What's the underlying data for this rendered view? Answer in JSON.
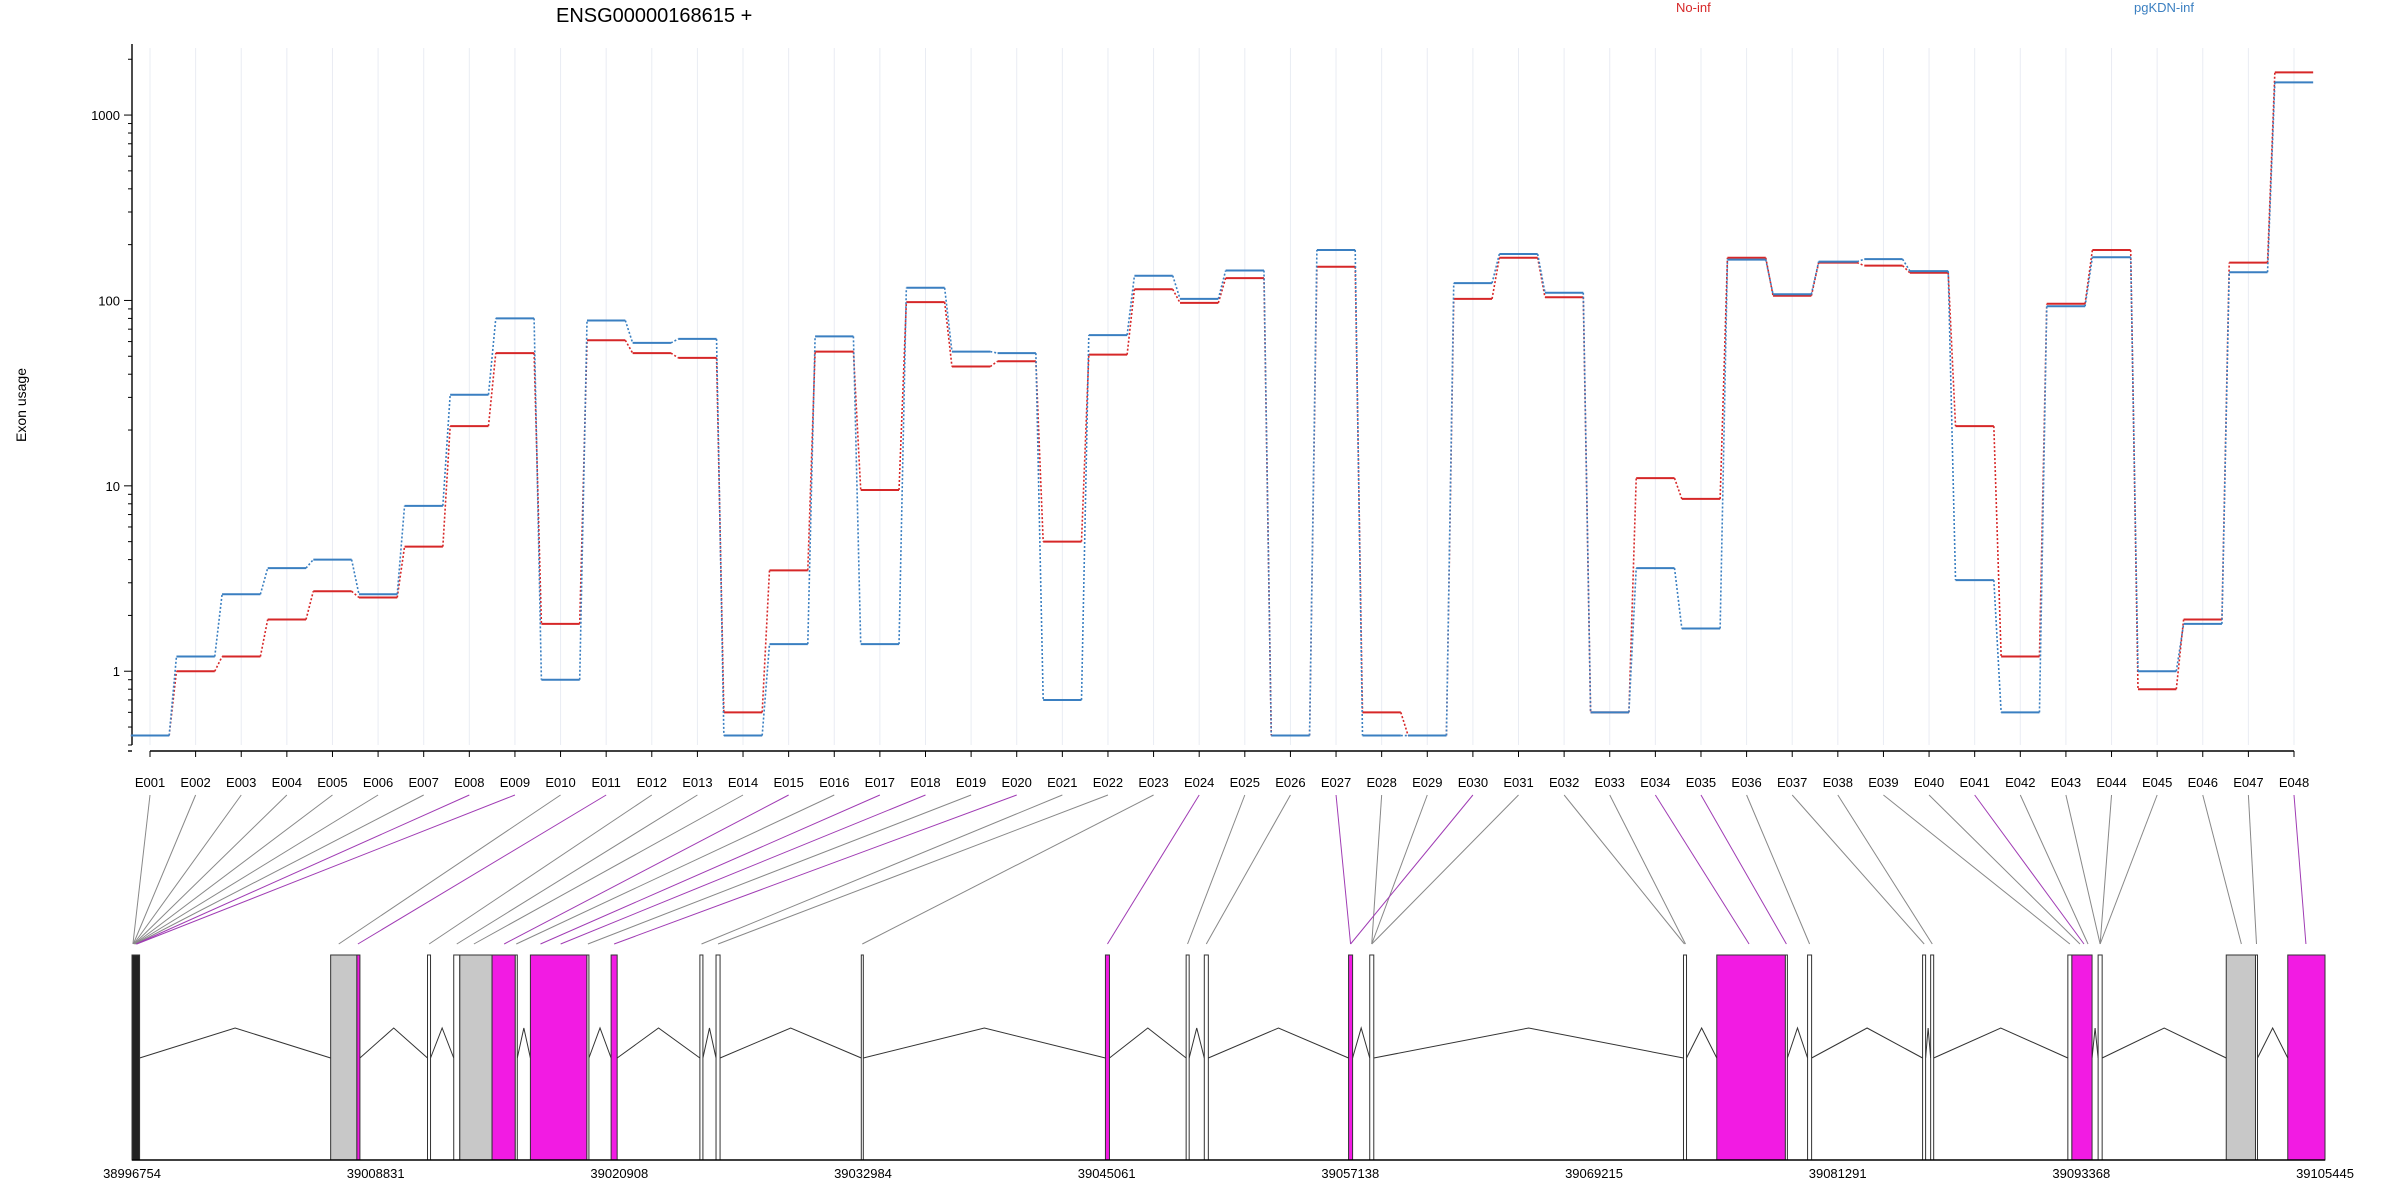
{
  "chart_data": {
    "type": "line",
    "title": "ENSG00000168615 +",
    "ylabel": "Exon usage",
    "y_scale": "log",
    "ylim": [
      0.4,
      2300
    ],
    "yticks": [
      1,
      10,
      100,
      1000
    ],
    "ytick_labels": [
      "1",
      "10",
      "100",
      "1000"
    ],
    "grid": "vertical, per exon",
    "legend": "top, horizontal",
    "categories": [
      "E001",
      "E002",
      "E003",
      "E004",
      "E005",
      "E006",
      "E007",
      "E008",
      "E009",
      "E010",
      "E011",
      "E012",
      "E013",
      "E014",
      "E015",
      "E016",
      "E017",
      "E018",
      "E019",
      "E020",
      "E021",
      "E022",
      "E023",
      "E024",
      "E025",
      "E026",
      "E027",
      "E028",
      "E029",
      "E030",
      "E031",
      "E032",
      "E033",
      "E034",
      "E035",
      "E036",
      "E037",
      "E038",
      "E039",
      "E040",
      "E041",
      "E042",
      "E043",
      "E044",
      "E045",
      "E046",
      "E047",
      "E048"
    ],
    "series": [
      {
        "name": "No-inf",
        "color": "#d62728",
        "values": [
          0.45,
          1.0,
          1.2,
          1.9,
          2.7,
          2.5,
          4.7,
          21,
          52,
          1.8,
          61,
          52,
          49,
          0.6,
          3.5,
          53,
          9.5,
          98,
          44,
          47,
          5,
          51,
          115,
          97,
          132,
          0.45,
          152,
          0.6,
          0.45,
          102,
          170,
          104,
          0.6,
          11,
          8.5,
          170,
          106,
          160,
          154,
          141,
          21,
          1.2,
          96,
          187,
          0.8,
          1.9,
          160,
          1700
        ]
      },
      {
        "name": "pgKDN-inf",
        "color": "#3a7fc1",
        "values": [
          0.45,
          1.2,
          2.6,
          3.6,
          4.0,
          2.6,
          7.8,
          31,
          80,
          0.9,
          78,
          59,
          62,
          0.45,
          1.4,
          64,
          1.4,
          117,
          53,
          52,
          0.7,
          65,
          136,
          102,
          145,
          0.45,
          187,
          0.45,
          0.45,
          124,
          178,
          110,
          0.6,
          3.6,
          1.7,
          166,
          108,
          162,
          167,
          144,
          3.1,
          0.6,
          93,
          171,
          1.0,
          1.8,
          142,
          1500
        ]
      }
    ]
  },
  "gene_model": {
    "coordinates": [
      "38996754",
      "39008831",
      "39020908",
      "39032984",
      "39045061",
      "39057138",
      "39069215",
      "39081291",
      "39093368",
      "39105445"
    ],
    "exon_color_significant": "#f21be3",
    "exon_color_other": "#c8c8c8",
    "exons": [
      {
        "s": 38996754,
        "e": 38997130,
        "f": "black"
      },
      {
        "s": 39006600,
        "e": 39007900,
        "f": "grey"
      },
      {
        "s": 39007900,
        "e": 39008050,
        "f": "pink"
      },
      {
        "s": 39011400,
        "e": 39011550,
        "f": "white"
      },
      {
        "s": 39012700,
        "e": 39013000,
        "f": "white"
      },
      {
        "s": 39013000,
        "e": 39014600,
        "f": "grey"
      },
      {
        "s": 39014600,
        "e": 39015750,
        "f": "pink"
      },
      {
        "s": 39015750,
        "e": 39015850,
        "f": "white"
      },
      {
        "s": 39016500,
        "e": 39019300,
        "f": "pink"
      },
      {
        "s": 39019300,
        "e": 39019400,
        "f": "white"
      },
      {
        "s": 39020500,
        "e": 39020800,
        "f": "pink"
      },
      {
        "s": 39024900,
        "e": 39025050,
        "f": "white"
      },
      {
        "s": 39025700,
        "e": 39025900,
        "f": "white"
      },
      {
        "s": 39032900,
        "e": 39033000,
        "f": "white"
      },
      {
        "s": 39045000,
        "e": 39045200,
        "f": "pink"
      },
      {
        "s": 39049000,
        "e": 39049150,
        "f": "white"
      },
      {
        "s": 39049900,
        "e": 39050100,
        "f": "white"
      },
      {
        "s": 39057050,
        "e": 39057250,
        "f": "pink"
      },
      {
        "s": 39058100,
        "e": 39058300,
        "f": "white"
      },
      {
        "s": 39073650,
        "e": 39073800,
        "f": "white"
      },
      {
        "s": 39075300,
        "e": 39078700,
        "f": "pink"
      },
      {
        "s": 39078700,
        "e": 39078800,
        "f": "white"
      },
      {
        "s": 39079800,
        "e": 39080000,
        "f": "white"
      },
      {
        "s": 39085500,
        "e": 39085650,
        "f": "white"
      },
      {
        "s": 39085900,
        "e": 39086050,
        "f": "white"
      },
      {
        "s": 39092700,
        "e": 39092900,
        "f": "white"
      },
      {
        "s": 39092900,
        "e": 39093900,
        "f": "pink"
      },
      {
        "s": 39094200,
        "e": 39094400,
        "f": "white"
      },
      {
        "s": 39100550,
        "e": 39102000,
        "f": "grey"
      },
      {
        "s": 39102000,
        "e": 39102100,
        "f": "white"
      },
      {
        "s": 39103600,
        "e": 39105445,
        "f": "pink"
      }
    ],
    "links": [
      {
        "c": 38996800,
        "p": false
      },
      {
        "c": 38996820,
        "p": false
      },
      {
        "c": 38996840,
        "p": false
      },
      {
        "c": 38996860,
        "p": false
      },
      {
        "c": 38996880,
        "p": false
      },
      {
        "c": 38996900,
        "p": false
      },
      {
        "c": 38996930,
        "p": false
      },
      {
        "c": 38996960,
        "p": true
      },
      {
        "c": 38996990,
        "p": true
      },
      {
        "c": 39007000,
        "p": false
      },
      {
        "c": 39007950,
        "p": true
      },
      {
        "c": 39011480,
        "p": false
      },
      {
        "c": 39012850,
        "p": false
      },
      {
        "c": 39013700,
        "p": false
      },
      {
        "c": 39015200,
        "p": true
      },
      {
        "c": 39015800,
        "p": false
      },
      {
        "c": 39017000,
        "p": true
      },
      {
        "c": 39018000,
        "p": true
      },
      {
        "c": 39019350,
        "p": false
      },
      {
        "c": 39020650,
        "p": true
      },
      {
        "c": 39024980,
        "p": false
      },
      {
        "c": 39025800,
        "p": false
      },
      {
        "c": 39032950,
        "p": false
      },
      {
        "c": 39045100,
        "p": true
      },
      {
        "c": 39049070,
        "p": false
      },
      {
        "c": 39050000,
        "p": false
      },
      {
        "c": 39057150,
        "p": true
      },
      {
        "c": 39058200,
        "p": false
      },
      {
        "c": 39058200,
        "p": false
      },
      {
        "c": 39057150,
        "p": true
      },
      {
        "c": 39058200,
        "p": false
      },
      {
        "c": 39073700,
        "p": false
      },
      {
        "c": 39073750,
        "p": false
      },
      {
        "c": 39076900,
        "p": true
      },
      {
        "c": 39078750,
        "p": true
      },
      {
        "c": 39079900,
        "p": false
      },
      {
        "c": 39085580,
        "p": false
      },
      {
        "c": 39085980,
        "p": false
      },
      {
        "c": 39092800,
        "p": false
      },
      {
        "c": 39093300,
        "p": false
      },
      {
        "c": 39093500,
        "p": true
      },
      {
        "c": 39093700,
        "p": false
      },
      {
        "c": 39094300,
        "p": false
      },
      {
        "c": 39094300,
        "p": false
      },
      {
        "c": 39094300,
        "p": false
      },
      {
        "c": 39101300,
        "p": false
      },
      {
        "c": 39102050,
        "p": false
      },
      {
        "c": 39104500,
        "p": true
      }
    ]
  }
}
